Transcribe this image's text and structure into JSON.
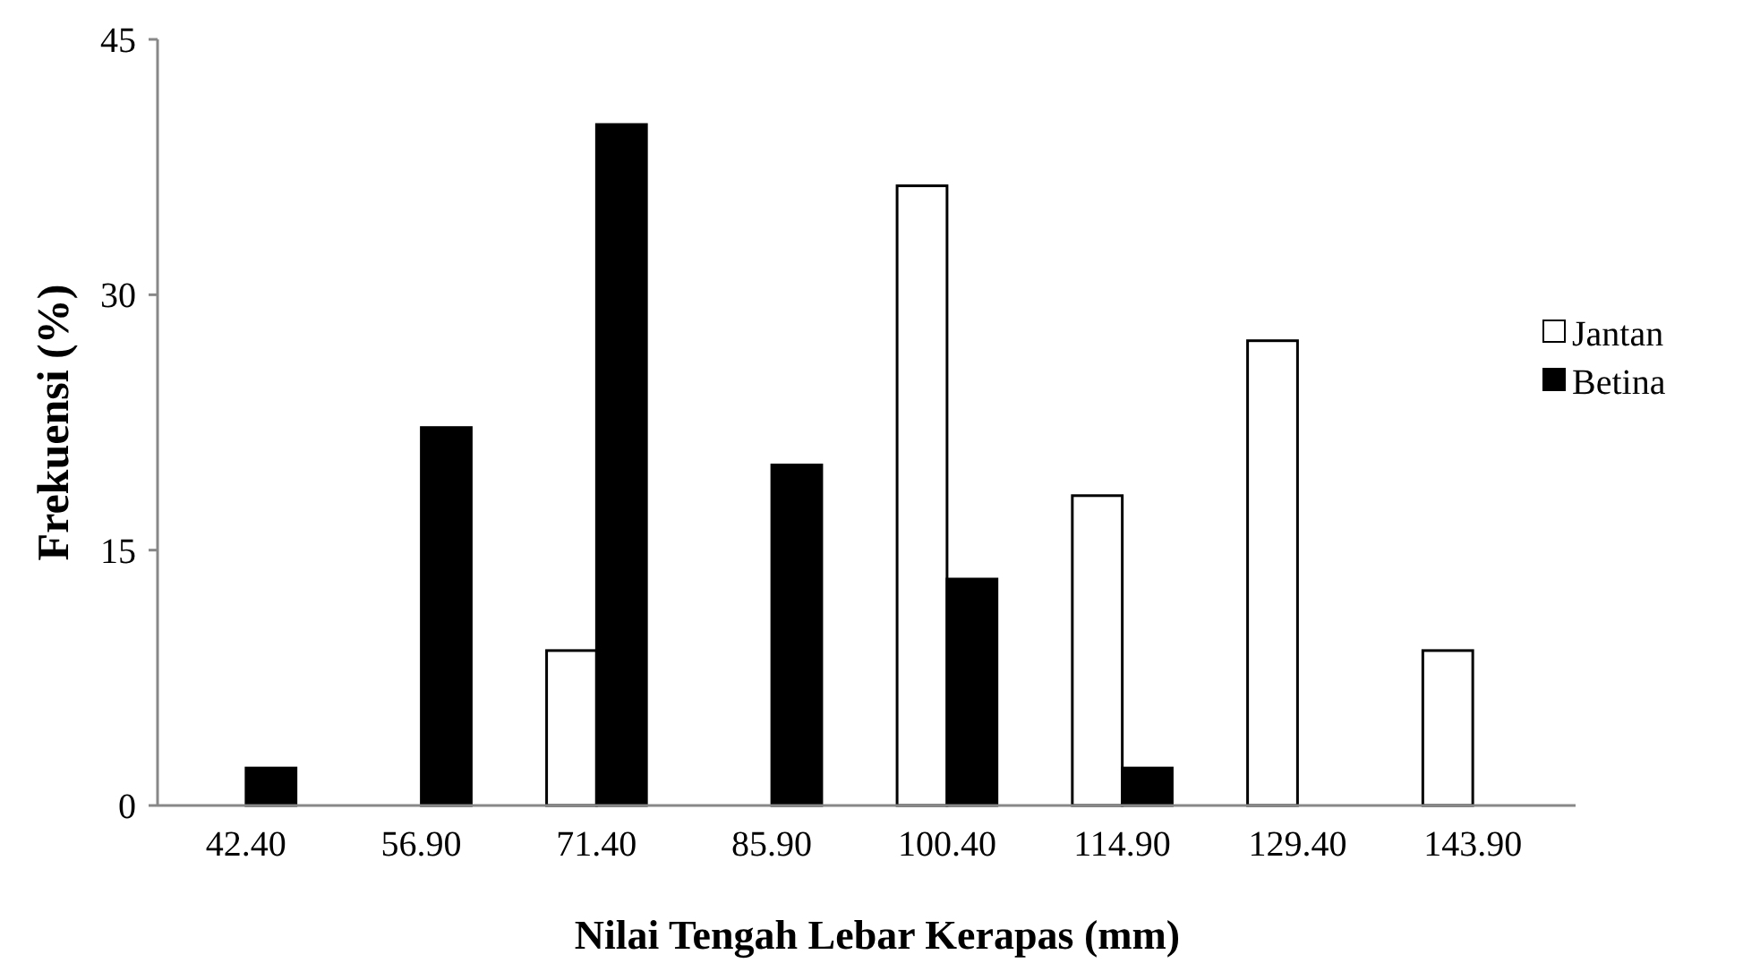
{
  "chart_data": {
    "type": "bar",
    "categories": [
      "42.40",
      "56.90",
      "71.40",
      "85.90",
      "100.40",
      "114.90",
      "129.40",
      "143.90"
    ],
    "series": [
      {
        "name": "Jantan",
        "color": "#ffffff",
        "values": [
          null,
          null,
          9.1,
          null,
          36.4,
          18.2,
          27.3,
          9.1
        ]
      },
      {
        "name": "Betina",
        "color": "#000000",
        "values": [
          2.2,
          22.2,
          40,
          20,
          13.3,
          2.2,
          null,
          null
        ]
      }
    ],
    "xlabel": "Nilai Tengah Lebar Kerapas (mm)",
    "ylabel": "Frekuensi (%)",
    "ylim": [
      0,
      45
    ],
    "yticks": [
      0,
      15,
      30,
      45
    ],
    "grid": false,
    "legend": "right"
  }
}
